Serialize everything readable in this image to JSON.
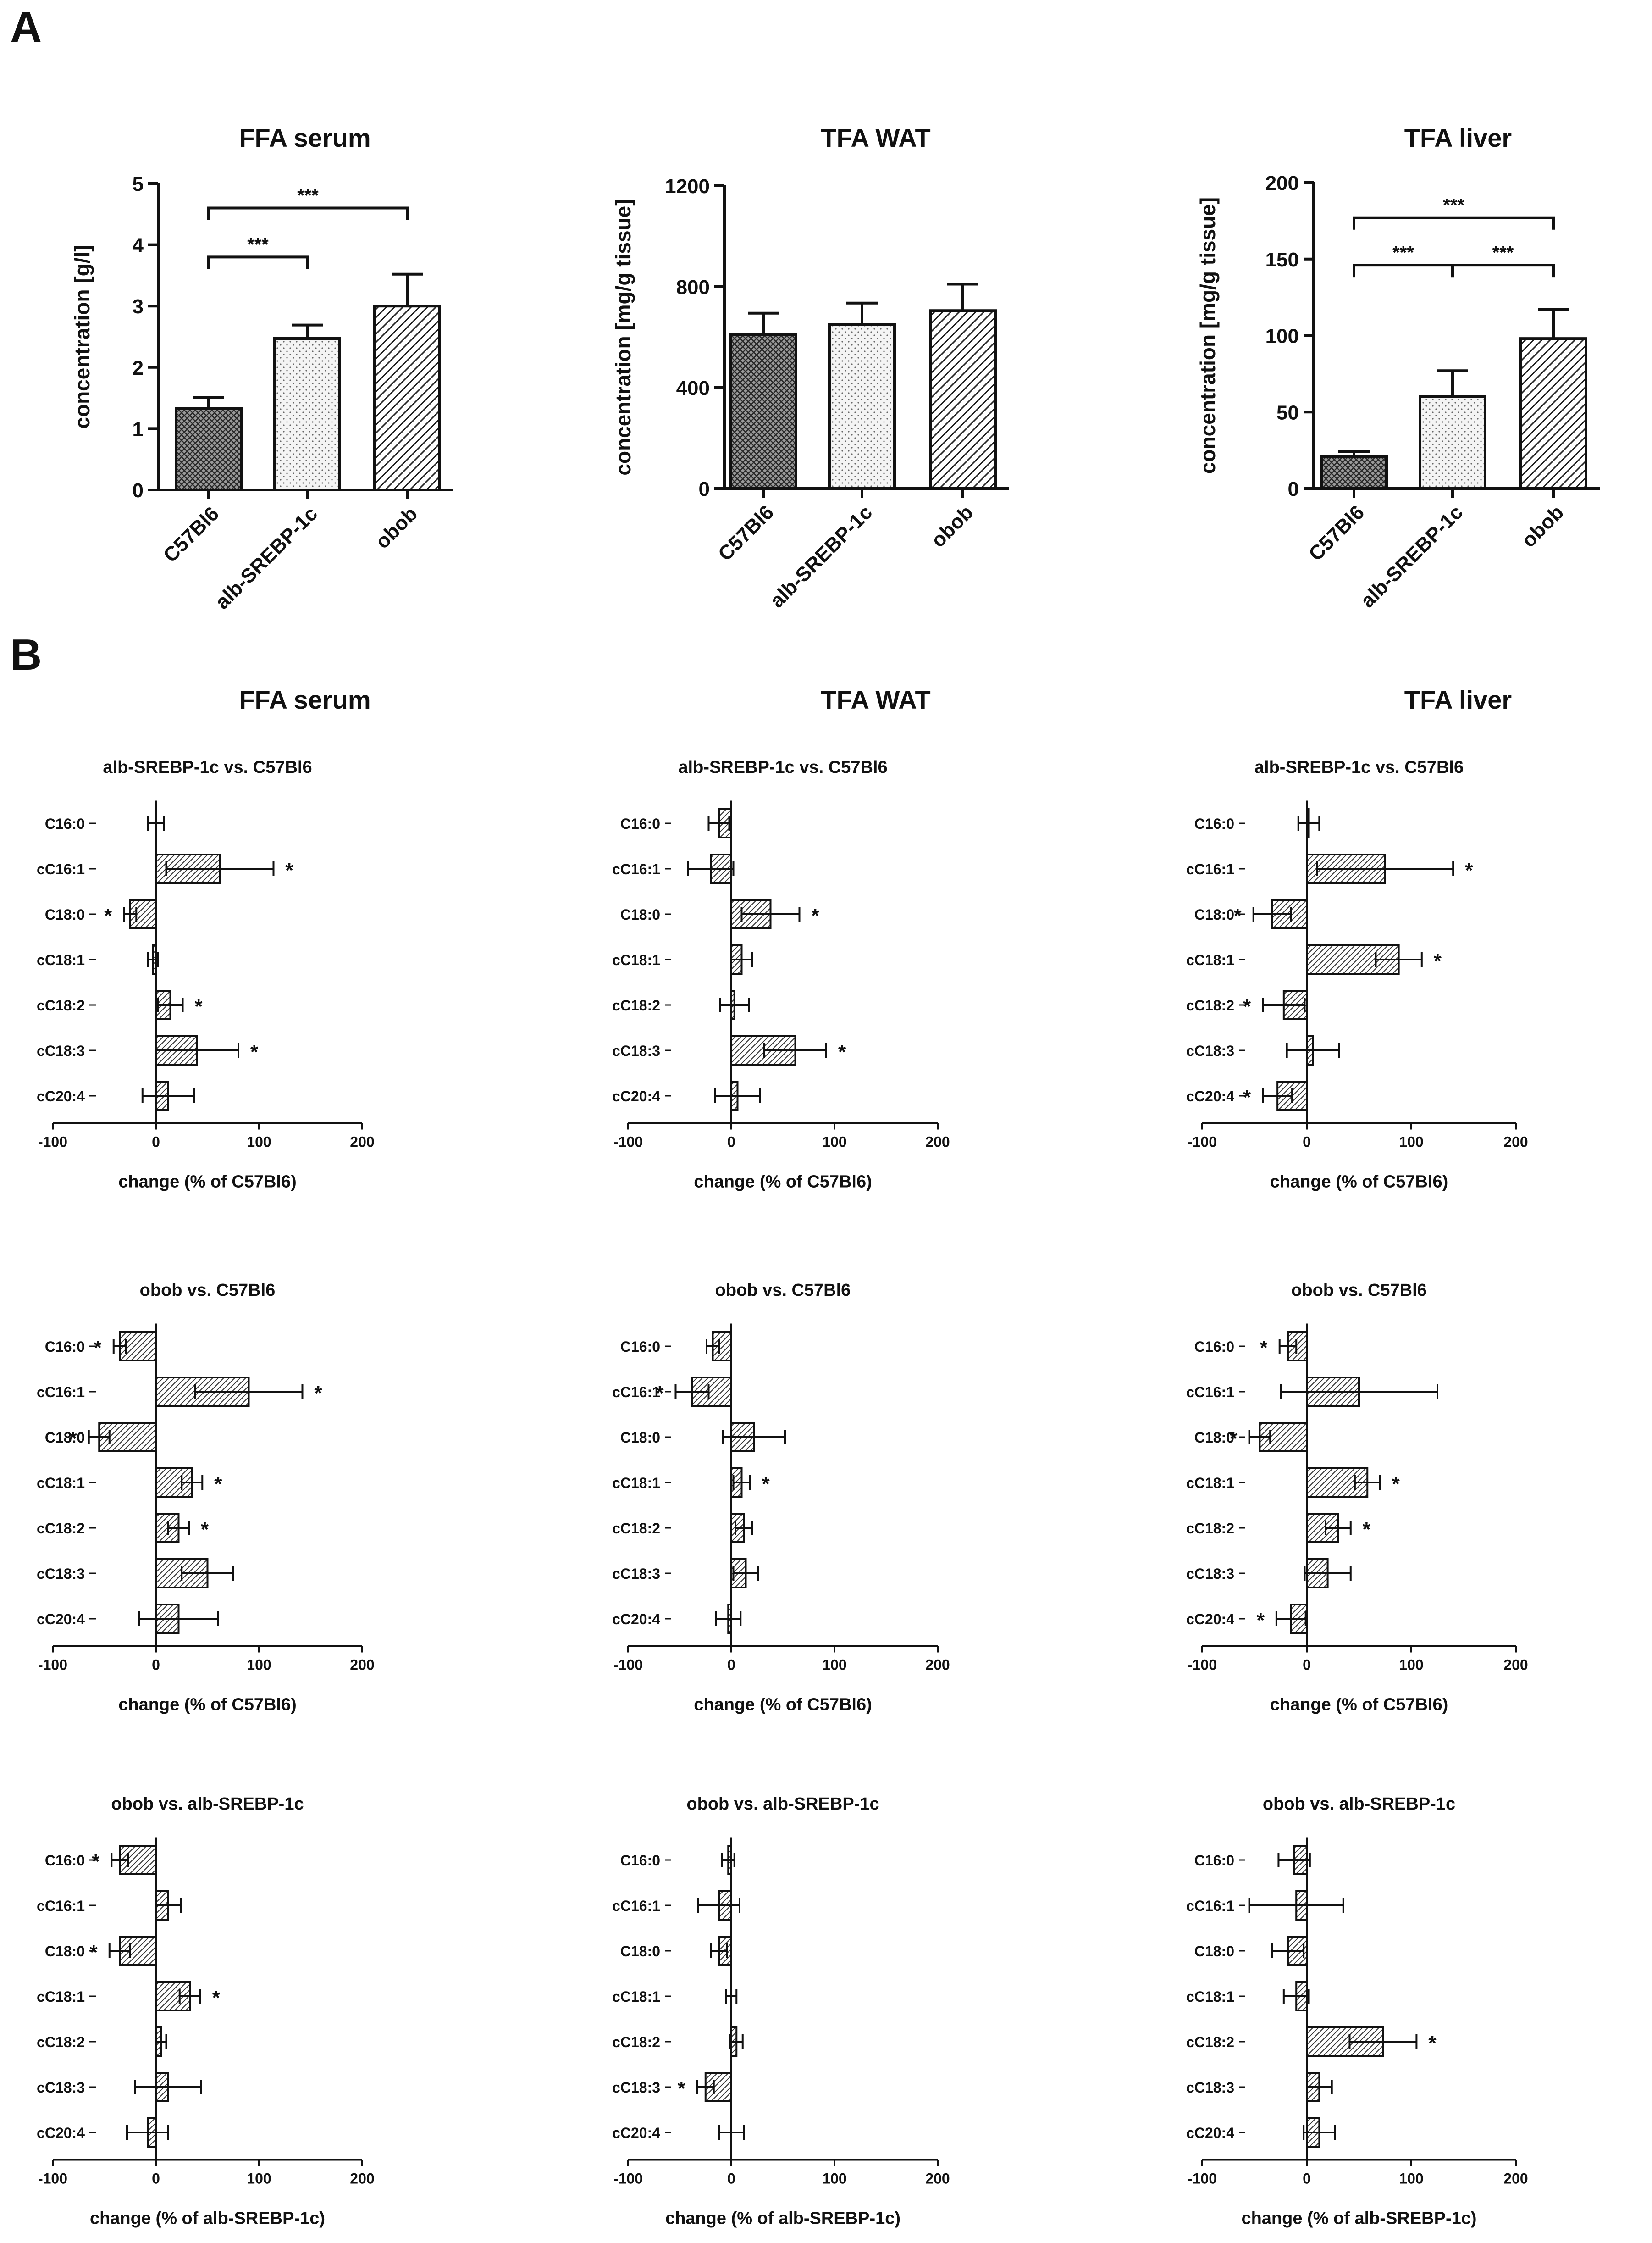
{
  "panel_labels": [
    "A",
    "B"
  ],
  "chart_data": [
    {
      "type": "bar",
      "panel": "A",
      "title": "FFA serum",
      "ylabel": "concentration [g/l]",
      "categories": [
        "C57Bl6",
        "alb-SREBP-1c",
        "obob"
      ],
      "values": [
        1.33,
        2.47,
        3.0
      ],
      "errors": [
        0.18,
        0.22,
        0.52
      ],
      "ylim": [
        0,
        5
      ],
      "yticks": [
        0,
        1,
        2,
        3,
        4,
        5
      ],
      "yticklabels": [
        "0",
        "1",
        "2",
        "3",
        "4",
        "5"
      ],
      "patterns": [
        "crosshatch",
        "dots",
        "hatch"
      ],
      "significance": [
        {
          "from": 0,
          "to": 2,
          "label": "***",
          "y": 4.6
        },
        {
          "from": 0,
          "to": 1,
          "label": "***",
          "y": 3.8
        }
      ]
    },
    {
      "type": "bar",
      "panel": "A",
      "title": "TFA WAT",
      "ylabel": "concentration [mg/g tissue]",
      "categories": [
        "C57Bl6",
        "alb-SREBP-1c",
        "obob"
      ],
      "values": [
        610,
        650,
        705
      ],
      "errors": [
        85,
        85,
        105
      ],
      "ylim": [
        0,
        1200
      ],
      "yticks": [
        0,
        400,
        800,
        1200
      ],
      "yticklabels": [
        "0",
        "400",
        "800",
        "1200"
      ],
      "patterns": [
        "crosshatch",
        "dots",
        "hatch"
      ],
      "significance": []
    },
    {
      "type": "bar",
      "panel": "A",
      "title": "TFA liver",
      "ylabel": "concentration [mg/g tissue]",
      "categories": [
        "C57Bl6",
        "alb-SREBP-1c",
        "obob"
      ],
      "values": [
        21,
        60,
        98
      ],
      "errors": [
        3,
        17,
        19
      ],
      "ylim": [
        0,
        200
      ],
      "yticks": [
        0,
        50,
        100,
        150,
        200
      ],
      "yticklabels": [
        "0",
        "50",
        "100",
        "150",
        "200"
      ],
      "patterns": [
        "crosshatch",
        "dots",
        "hatch"
      ],
      "significance": [
        {
          "from": 0,
          "to": 2,
          "label": "***",
          "y": 177
        },
        {
          "from": 0,
          "to": 1,
          "label": "***",
          "y": 146
        },
        {
          "from": 1,
          "to": 2,
          "label": "***",
          "y": 146
        }
      ]
    },
    {
      "type": "barh",
      "panel": "B",
      "col": 0,
      "row": 0,
      "column_title": "FFA serum",
      "title": "alb-SREBP-1c vs. C57Bl6",
      "xlabel": "change (% of C57Bl6)",
      "categories": [
        "C16:0",
        "cC16:1",
        "C18:0",
        "cC18:1",
        "cC18:2",
        "cC18:3",
        "cC20:4"
      ],
      "values": [
        0,
        62,
        -25,
        -3,
        14,
        40,
        12
      ],
      "errors": [
        8,
        52,
        6,
        5,
        12,
        40,
        25
      ],
      "sig": [
        false,
        true,
        true,
        false,
        true,
        true,
        false
      ],
      "xlim": [
        -100,
        200
      ],
      "xticks": [
        -100,
        0,
        100,
        200
      ],
      "xticklabels": [
        "-100",
        "0",
        "100",
        "200"
      ],
      "star": "*"
    },
    {
      "type": "barh",
      "panel": "B",
      "col": 1,
      "row": 0,
      "column_title": "TFA WAT",
      "title": "alb-SREBP-1c vs. C57Bl6",
      "xlabel": "change (% of C57Bl6)",
      "categories": [
        "C16:0",
        "cC16:1",
        "C18:0",
        "cC18:1",
        "cC18:2",
        "cC18:3",
        "cC20:4"
      ],
      "values": [
        -12,
        -20,
        38,
        10,
        3,
        62,
        6
      ],
      "errors": [
        10,
        22,
        28,
        10,
        14,
        30,
        22
      ],
      "sig": [
        false,
        false,
        true,
        false,
        false,
        true,
        false
      ],
      "xlim": [
        -100,
        200
      ],
      "xticks": [
        -100,
        0,
        100,
        200
      ],
      "xticklabels": [
        "-100",
        "0",
        "100",
        "200"
      ],
      "star": "*"
    },
    {
      "type": "barh",
      "panel": "B",
      "col": 2,
      "row": 0,
      "column_title": "TFA liver",
      "title": "alb-SREBP-1c vs. C57Bl6",
      "xlabel": "change (% of C57Bl6)",
      "categories": [
        "C16:0",
        "cC16:1",
        "C18:0",
        "cC18:1",
        "cC18:2",
        "cC18:3",
        "cC20:4"
      ],
      "values": [
        2,
        75,
        -33,
        88,
        -22,
        6,
        -28
      ],
      "errors": [
        10,
        65,
        18,
        22,
        20,
        25,
        14
      ],
      "sig": [
        false,
        true,
        true,
        true,
        true,
        false,
        true
      ],
      "xlim": [
        -100,
        200
      ],
      "xticks": [
        -100,
        0,
        100,
        200
      ],
      "xticklabels": [
        "-100",
        "0",
        "100",
        "200"
      ],
      "star": "*"
    },
    {
      "type": "barh",
      "panel": "B",
      "col": 0,
      "row": 1,
      "title": "obob vs. C57Bl6",
      "xlabel": "change (% of C57Bl6)",
      "categories": [
        "C16:0",
        "cC16:1",
        "C18:0",
        "cC18:1",
        "cC18:2",
        "cC18:3",
        "cC20:4"
      ],
      "values": [
        -35,
        90,
        -55,
        35,
        22,
        50,
        22
      ],
      "errors": [
        6,
        52,
        10,
        10,
        10,
        25,
        38
      ],
      "sig": [
        true,
        true,
        true,
        true,
        true,
        false,
        false
      ],
      "xlim": [
        -100,
        200
      ],
      "xticks": [
        -100,
        0,
        100,
        200
      ],
      "xticklabels": [
        "-100",
        "0",
        "100",
        "200"
      ],
      "star": "*"
    },
    {
      "type": "barh",
      "panel": "B",
      "col": 1,
      "row": 1,
      "title": "obob vs. C57Bl6",
      "xlabel": "change (% of C57Bl6)",
      "categories": [
        "C16:0",
        "cC16:1",
        "C18:0",
        "cC18:1",
        "cC18:2",
        "cC18:3",
        "cC20:4"
      ],
      "values": [
        -18,
        -38,
        22,
        10,
        12,
        14,
        -3
      ],
      "errors": [
        6,
        16,
        30,
        8,
        8,
        12,
        12
      ],
      "sig": [
        false,
        true,
        false,
        true,
        false,
        false,
        false
      ],
      "xlim": [
        -100,
        200
      ],
      "xticks": [
        -100,
        0,
        100,
        200
      ],
      "xticklabels": [
        "-100",
        "0",
        "100",
        "200"
      ],
      "star": "*"
    },
    {
      "type": "barh",
      "panel": "B",
      "col": 2,
      "row": 1,
      "title": "obob vs. C57Bl6",
      "xlabel": "change (% of C57Bl6)",
      "categories": [
        "C16:0",
        "cC16:1",
        "C18:0",
        "cC18:1",
        "cC18:2",
        "cC18:3",
        "cC20:4"
      ],
      "values": [
        -18,
        50,
        -45,
        58,
        30,
        20,
        -15
      ],
      "errors": [
        8,
        75,
        10,
        12,
        12,
        22,
        14
      ],
      "sig": [
        true,
        false,
        true,
        true,
        true,
        false,
        true
      ],
      "xlim": [
        -100,
        200
      ],
      "xticks": [
        -100,
        0,
        100,
        200
      ],
      "xticklabels": [
        "-100",
        "0",
        "100",
        "200"
      ],
      "star": "*"
    },
    {
      "type": "barh",
      "panel": "B",
      "col": 0,
      "row": 2,
      "title": "obob vs. alb-SREBP-1c",
      "xlabel": "change (% of alb-SREBP-1c)",
      "categories": [
        "C16:0",
        "cC16:1",
        "C18:0",
        "cC18:1",
        "cC18:2",
        "cC18:3",
        "cC20:4"
      ],
      "values": [
        -35,
        12,
        -35,
        33,
        5,
        12,
        -8
      ],
      "errors": [
        8,
        12,
        10,
        10,
        5,
        32,
        20
      ],
      "sig": [
        true,
        false,
        true,
        true,
        false,
        false,
        false
      ],
      "xlim": [
        -100,
        200
      ],
      "xticks": [
        -100,
        0,
        100,
        200
      ],
      "xticklabels": [
        "-100",
        "0",
        "100",
        "200"
      ],
      "star": "*"
    },
    {
      "type": "barh",
      "panel": "B",
      "col": 1,
      "row": 2,
      "title": "obob vs. alb-SREBP-1c",
      "xlabel": "change (% of alb-SREBP-1c)",
      "categories": [
        "C16:0",
        "cC16:1",
        "C18:0",
        "cC18:1",
        "cC18:2",
        "cC18:3",
        "cC20:4"
      ],
      "values": [
        -3,
        -12,
        -12,
        0,
        5,
        -25,
        0
      ],
      "errors": [
        6,
        20,
        8,
        5,
        6,
        8,
        12
      ],
      "sig": [
        false,
        false,
        false,
        false,
        false,
        true,
        false
      ],
      "xlim": [
        -100,
        200
      ],
      "xticks": [
        -100,
        0,
        100,
        200
      ],
      "xticklabels": [
        "-100",
        "0",
        "100",
        "200"
      ],
      "star": "*"
    },
    {
      "type": "barh",
      "panel": "B",
      "col": 2,
      "row": 2,
      "title": "obob vs. alb-SREBP-1c",
      "xlabel": "change (% of alb-SREBP-1c)",
      "categories": [
        "C16:0",
        "cC16:1",
        "C18:0",
        "cC18:1",
        "cC18:2",
        "cC18:3",
        "cC20:4"
      ],
      "values": [
        -12,
        -10,
        -18,
        -10,
        73,
        12,
        12
      ],
      "errors": [
        15,
        45,
        15,
        12,
        32,
        12,
        15
      ],
      "sig": [
        false,
        false,
        false,
        false,
        true,
        false,
        false
      ],
      "xlim": [
        -100,
        200
      ],
      "xticks": [
        -100,
        0,
        100,
        200
      ],
      "xticklabels": [
        "-100",
        "0",
        "100",
        "200"
      ],
      "star": "*"
    }
  ]
}
